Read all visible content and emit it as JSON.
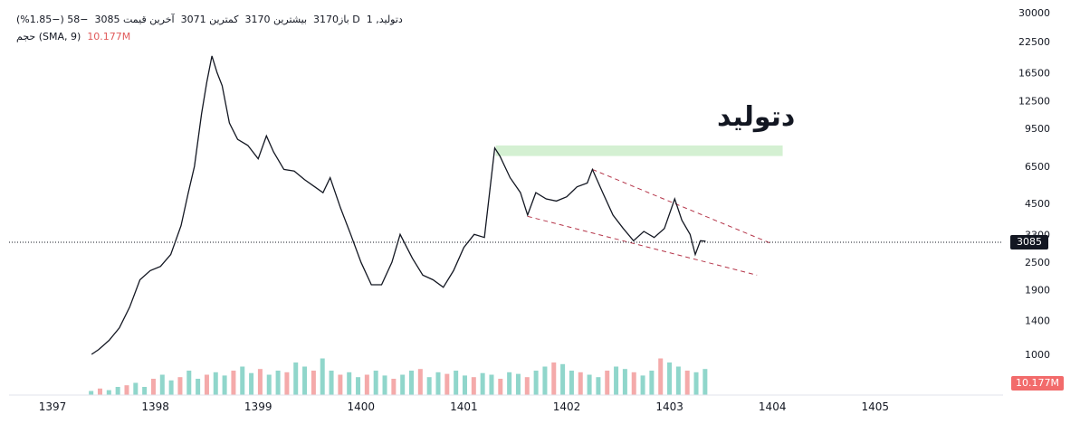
{
  "legend": {
    "line1_symbol": "دتولید, 1",
    "line1_open": "D باز3170",
    "line1_high": "بیشترین 3170",
    "line1_low": "کمترین 3071",
    "line1_last": "آخرین قیمت 3085",
    "line1_change": "−58 (−1.85%)",
    "line2_label": "حجم (SMA, 9)",
    "line2_value": "10.177M"
  },
  "symbol_label": "دتولید",
  "price_tag": "3085",
  "volume_tag": "10.177M",
  "colors": {
    "price_line": "#131722",
    "volume_up": "#7ccfc2",
    "volume_down": "#f29b9b",
    "zone_fill": "#d4f0d2",
    "trendline": "#b5364a",
    "price_tag_bg": "#131722",
    "volume_tag_bg": "#f26b6b"
  },
  "chart_data": {
    "type": "line",
    "scale": "log",
    "y_ticks": [
      30000,
      22500,
      16500,
      12500,
      9500,
      6500,
      4500,
      3300,
      2500,
      1900,
      1400,
      1000
    ],
    "x_ticks": [
      "1397",
      "1398",
      "1399",
      "1400",
      "1401",
      "1402",
      "1403",
      "1404",
      "1405"
    ],
    "last_price": 3085,
    "series": [
      {
        "values": [
          {
            "x": 1397.38,
            "y": 1000
          },
          {
            "x": 1397.45,
            "y": 1050
          },
          {
            "x": 1397.55,
            "y": 1150
          },
          {
            "x": 1397.65,
            "y": 1300
          },
          {
            "x": 1397.75,
            "y": 1600
          },
          {
            "x": 1397.85,
            "y": 2100
          },
          {
            "x": 1397.95,
            "y": 2300
          },
          {
            "x": 1398.05,
            "y": 2400
          },
          {
            "x": 1398.15,
            "y": 2700
          },
          {
            "x": 1398.25,
            "y": 3600
          },
          {
            "x": 1398.32,
            "y": 5000
          },
          {
            "x": 1398.38,
            "y": 6500
          },
          {
            "x": 1398.45,
            "y": 11000
          },
          {
            "x": 1398.5,
            "y": 15000
          },
          {
            "x": 1398.55,
            "y": 19500
          },
          {
            "x": 1398.6,
            "y": 16500
          },
          {
            "x": 1398.65,
            "y": 14500
          },
          {
            "x": 1398.72,
            "y": 10000
          },
          {
            "x": 1398.8,
            "y": 8500
          },
          {
            "x": 1398.9,
            "y": 8000
          },
          {
            "x": 1399.0,
            "y": 7000
          },
          {
            "x": 1399.08,
            "y": 8800
          },
          {
            "x": 1399.15,
            "y": 7500
          },
          {
            "x": 1399.25,
            "y": 6300
          },
          {
            "x": 1399.35,
            "y": 6200
          },
          {
            "x": 1399.45,
            "y": 5700
          },
          {
            "x": 1399.55,
            "y": 5300
          },
          {
            "x": 1399.63,
            "y": 5000
          },
          {
            "x": 1399.7,
            "y": 5800
          },
          {
            "x": 1399.8,
            "y": 4300
          },
          {
            "x": 1399.9,
            "y": 3300
          },
          {
            "x": 1400.0,
            "y": 2500
          },
          {
            "x": 1400.1,
            "y": 2000
          },
          {
            "x": 1400.2,
            "y": 2000
          },
          {
            "x": 1400.3,
            "y": 2500
          },
          {
            "x": 1400.38,
            "y": 3300
          },
          {
            "x": 1400.5,
            "y": 2600
          },
          {
            "x": 1400.6,
            "y": 2200
          },
          {
            "x": 1400.7,
            "y": 2100
          },
          {
            "x": 1400.8,
            "y": 1950
          },
          {
            "x": 1400.9,
            "y": 2300
          },
          {
            "x": 1401.0,
            "y": 2900
          },
          {
            "x": 1401.1,
            "y": 3300
          },
          {
            "x": 1401.2,
            "y": 3200
          },
          {
            "x": 1401.25,
            "y": 5000
          },
          {
            "x": 1401.3,
            "y": 7800
          },
          {
            "x": 1401.35,
            "y": 7200
          },
          {
            "x": 1401.45,
            "y": 5800
          },
          {
            "x": 1401.55,
            "y": 5000
          },
          {
            "x": 1401.62,
            "y": 4000
          },
          {
            "x": 1401.7,
            "y": 5000
          },
          {
            "x": 1401.8,
            "y": 4700
          },
          {
            "x": 1401.9,
            "y": 4600
          },
          {
            "x": 1402.0,
            "y": 4800
          },
          {
            "x": 1402.1,
            "y": 5300
          },
          {
            "x": 1402.2,
            "y": 5500
          },
          {
            "x": 1402.25,
            "y": 6300
          },
          {
            "x": 1402.35,
            "y": 5000
          },
          {
            "x": 1402.45,
            "y": 4000
          },
          {
            "x": 1402.55,
            "y": 3500
          },
          {
            "x": 1402.65,
            "y": 3100
          },
          {
            "x": 1402.75,
            "y": 3400
          },
          {
            "x": 1402.85,
            "y": 3200
          },
          {
            "x": 1402.95,
            "y": 3500
          },
          {
            "x": 1403.05,
            "y": 4700
          },
          {
            "x": 1403.12,
            "y": 3800
          },
          {
            "x": 1403.2,
            "y": 3300
          },
          {
            "x": 1403.25,
            "y": 2700
          },
          {
            "x": 1403.3,
            "y": 3100
          },
          {
            "x": 1403.35,
            "y": 3085
          }
        ]
      }
    ],
    "volume": [
      0.05,
      0.08,
      0.06,
      0.1,
      0.12,
      0.15,
      0.1,
      0.2,
      0.25,
      0.18,
      0.22,
      0.3,
      0.2,
      0.25,
      0.28,
      0.24,
      0.3,
      0.35,
      0.27,
      0.32,
      0.25,
      0.3,
      0.28,
      0.4,
      0.35,
      0.3,
      0.45,
      0.3,
      0.25,
      0.28,
      0.22,
      0.25,
      0.3,
      0.24,
      0.2,
      0.25,
      0.3,
      0.32,
      0.22,
      0.28,
      0.26,
      0.3,
      0.24,
      0.22,
      0.27,
      0.25,
      0.2,
      0.28,
      0.26,
      0.22,
      0.3,
      0.35,
      0.4,
      0.38,
      0.3,
      0.28,
      0.25,
      0.22,
      0.3,
      0.35,
      0.32,
      0.28,
      0.24,
      0.3,
      0.45,
      0.4,
      0.35,
      0.3,
      0.28,
      0.32
    ],
    "zone": {
      "x_start": 1401.31,
      "x_end": 1404.1,
      "y_low": 7200,
      "y_high": 8000
    },
    "trendlines": [
      {
        "x1": 1402.25,
        "y1": 6300,
        "x2": 1404.0,
        "y2": 3000
      },
      {
        "x1": 1401.62,
        "y1": 3950,
        "x2": 1403.85,
        "y2": 2200
      }
    ]
  }
}
